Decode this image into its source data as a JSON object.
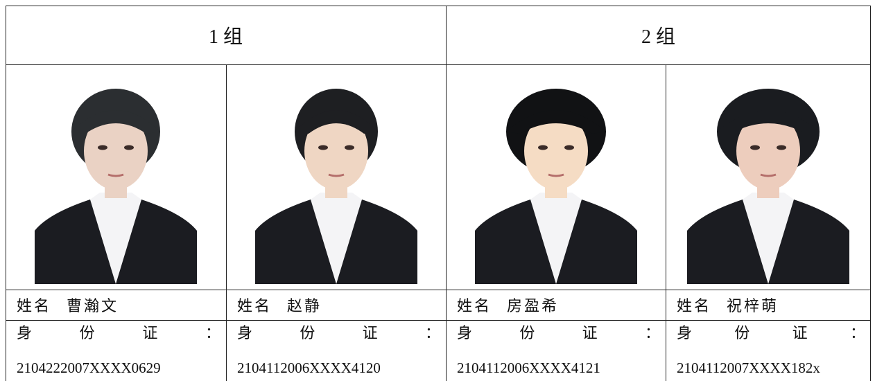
{
  "groups": [
    {
      "title": "1 组",
      "people": [
        {
          "name_label": "姓名",
          "name": "曹瀚文",
          "id_label": "身 份 证 ：",
          "id": "2104222007XXXX0629"
        },
        {
          "name_label": "姓名",
          "name": "赵静",
          "id_label": "身 份 证 ：",
          "id": "2104112006XXXX4120"
        }
      ]
    },
    {
      "title": "2 组",
      "people": [
        {
          "name_label": "姓名",
          "name": "房盈希",
          "id_label": "身 份 证 ：",
          "id": "2104112006XXXX4121"
        },
        {
          "name_label": "姓名",
          "name": "祝梓萌",
          "id_label": "身 份 证 ：",
          "id": "2104112007XXXX182x"
        }
      ]
    }
  ]
}
